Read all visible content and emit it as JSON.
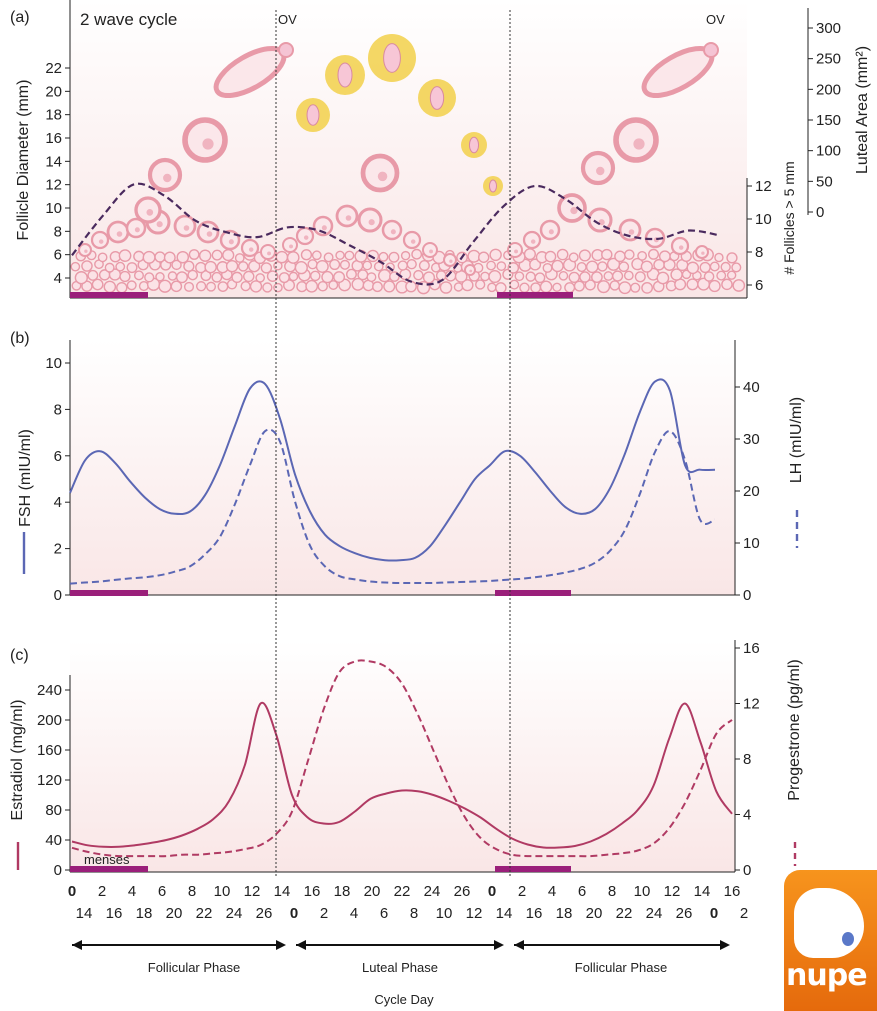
{
  "panels": {
    "a": {
      "label": "(a)",
      "title": "2 wave cycle",
      "ov_label": "OV",
      "left_axis_label": "Follicle Diameter (mm)",
      "left_ticks": [
        "4",
        "6",
        "8",
        "10",
        "12",
        "14",
        "16",
        "18",
        "20",
        "22"
      ],
      "mid_axis_label": "# Follicles > 5 mm",
      "mid_ticks": [
        "6",
        "8",
        "10",
        "12"
      ],
      "right_axis_label": "Luteal Area (mm²)",
      "right_ticks": [
        "0",
        "50",
        "100",
        "150",
        "200",
        "250",
        "300"
      ]
    },
    "b": {
      "label": "(b)",
      "left_axis_label": "FSH (mIU/ml)",
      "left_ticks": [
        "0",
        "2",
        "4",
        "6",
        "8",
        "10"
      ],
      "right_axis_label": "LH (mIU/ml)",
      "right_ticks": [
        "0",
        "10",
        "20",
        "30",
        "40"
      ]
    },
    "c": {
      "label": "(c)",
      "left_axis_label": "Estradiol (mg/ml)",
      "left_ticks": [
        "0",
        "40",
        "80",
        "120",
        "160",
        "200",
        "240"
      ],
      "right_axis_label": "Progestrone (pg/ml)",
      "right_ticks": [
        "0",
        "4",
        "8",
        "12",
        "16"
      ],
      "menses_label": "menses"
    }
  },
  "x_axis": {
    "row1": [
      "0",
      "2",
      "4",
      "6",
      "8",
      "10",
      "12",
      "14",
      "16",
      "18",
      "20",
      "22",
      "24",
      "26",
      "0",
      "2",
      "4",
      "6",
      "8",
      "10",
      "12",
      "14",
      "16"
    ],
    "row1_bold": [
      "0",
      "0"
    ],
    "row2": [
      "14",
      "16",
      "18",
      "20",
      "22",
      "24",
      "26",
      "0",
      "2",
      "4",
      "6",
      "8",
      "10",
      "12",
      "14",
      "16",
      "18",
      "20",
      "22",
      "24",
      "26",
      "0",
      "2"
    ],
    "row2_bold_index": [
      7,
      21
    ],
    "label": "Cycle Day"
  },
  "phases": [
    "Follicular Phase",
    "Luteal Phase",
    "Follicular Phase"
  ],
  "logo_text": "nupe",
  "colors": {
    "fsh": "#5b67b4",
    "lh": "#5b67b4",
    "estradiol": "#b03a63",
    "progesterone": "#b03a63",
    "follicle_curve": "#4a2a5e",
    "menses_bar": "#9a1f7a",
    "follicle_pink": "#e89aa8",
    "corpus_luteum": "#f2d04a"
  },
  "chart_data": [
    {
      "type": "line",
      "panel": "a",
      "x_day": [
        0,
        2,
        4,
        6,
        8,
        10,
        12,
        14,
        16,
        18,
        20,
        22,
        24,
        26,
        28,
        30,
        32,
        34,
        36,
        38,
        40,
        42
      ],
      "series": [
        {
          "name": "# Follicles > 5 mm",
          "y": [
            7.8,
            10.2,
            12.1,
            11.4,
            9.9,
            9.2,
            8.9,
            9.5,
            9.3,
            8.4,
            7.4,
            6.2,
            6.3,
            8.6,
            10.8,
            12.0,
            11.2,
            9.8,
            9.0,
            8.8,
            9.3,
            9.0
          ]
        }
      ],
      "ylim": [
        5,
        13
      ]
    },
    {
      "type": "line",
      "panel": "b",
      "x_day": [
        0,
        1,
        2,
        3,
        4,
        5,
        6,
        7,
        8,
        9,
        10,
        11,
        12,
        13,
        14,
        15,
        16,
        17,
        18,
        19,
        20,
        21,
        22,
        23,
        24,
        25,
        26,
        27,
        28,
        29,
        30,
        31,
        32,
        33,
        34,
        35,
        36,
        37,
        38,
        39,
        40,
        41,
        42,
        43,
        44
      ],
      "series": [
        {
          "name": "FSH (mIU/ml)",
          "axis": "left",
          "values": [
            4.4,
            5.8,
            6.2,
            5.7,
            4.9,
            4.2,
            3.7,
            3.5,
            3.6,
            4.3,
            5.6,
            7.3,
            8.9,
            9.1,
            7.6,
            5.2,
            3.6,
            2.6,
            2.1,
            1.8,
            1.6,
            1.5,
            1.5,
            1.6,
            2.1,
            3.0,
            4.0,
            5.0,
            5.6,
            6.2,
            6.0,
            5.3,
            4.5,
            3.8,
            3.5,
            3.7,
            4.6,
            6.1,
            7.9,
            9.2,
            8.8,
            5.6,
            5.4,
            5.4,
            5.4
          ]
        },
        {
          "name": "LH (mIU/ml)",
          "axis": "right",
          "values": [
            2.2,
            2.4,
            2.6,
            2.9,
            3.2,
            3.4,
            3.8,
            4.5,
            5.5,
            7.8,
            11.2,
            17.5,
            25.0,
            31.5,
            29.5,
            18.0,
            9.5,
            5.5,
            3.6,
            3.0,
            2.6,
            2.4,
            2.3,
            2.3,
            2.3,
            2.4,
            2.5,
            2.6,
            2.7,
            2.9,
            3.1,
            3.4,
            3.8,
            4.3,
            5.0,
            6.2,
            8.5,
            12.5,
            19.5,
            27.5,
            31.5,
            26.0,
            14.5,
            14.5,
            14.5
          ]
        }
      ],
      "ylim_left": [
        0,
        10
      ],
      "ylim_right": [
        0,
        40
      ]
    },
    {
      "type": "line",
      "panel": "c",
      "x_day": [
        0,
        1,
        2,
        3,
        4,
        5,
        6,
        7,
        8,
        9,
        10,
        11,
        12,
        13,
        14,
        15,
        16,
        17,
        18,
        19,
        20,
        21,
        22,
        23,
        24,
        25,
        26,
        27,
        28,
        29,
        30,
        31,
        32,
        33,
        34,
        35,
        36,
        37,
        38,
        39,
        40,
        41,
        42
      ],
      "series": [
        {
          "name": "Estradiol (mg/ml)",
          "axis": "left",
          "values": [
            38,
            33,
            31,
            31,
            33,
            36,
            40,
            46,
            55,
            68,
            92,
            140,
            222,
            180,
            100,
            70,
            62,
            64,
            78,
            95,
            102,
            106,
            105,
            100,
            92,
            82,
            70,
            55,
            42,
            34,
            30,
            30,
            32,
            38,
            48,
            62,
            80,
            112,
            175,
            222,
            170,
            105,
            75
          ]
        },
        {
          "name": "Progestrone (pg/ml)",
          "axis": "right",
          "values": [
            1.6,
            1.3,
            1.1,
            1.0,
            1.0,
            1.0,
            1.0,
            1.1,
            1.1,
            1.2,
            1.3,
            1.5,
            1.8,
            2.6,
            4.2,
            7.8,
            11.5,
            14.2,
            15.0,
            15.0,
            14.6,
            13.4,
            11.2,
            8.6,
            6.0,
            3.8,
            2.3,
            1.5,
            1.1,
            1.0,
            1.0,
            1.0,
            1.0,
            1.0,
            1.1,
            1.2,
            1.4,
            1.9,
            3.0,
            4.8,
            7.2,
            9.8,
            10.8
          ]
        }
      ],
      "ylim_left": [
        0,
        240
      ],
      "ylim_right": [
        0,
        16
      ]
    }
  ]
}
